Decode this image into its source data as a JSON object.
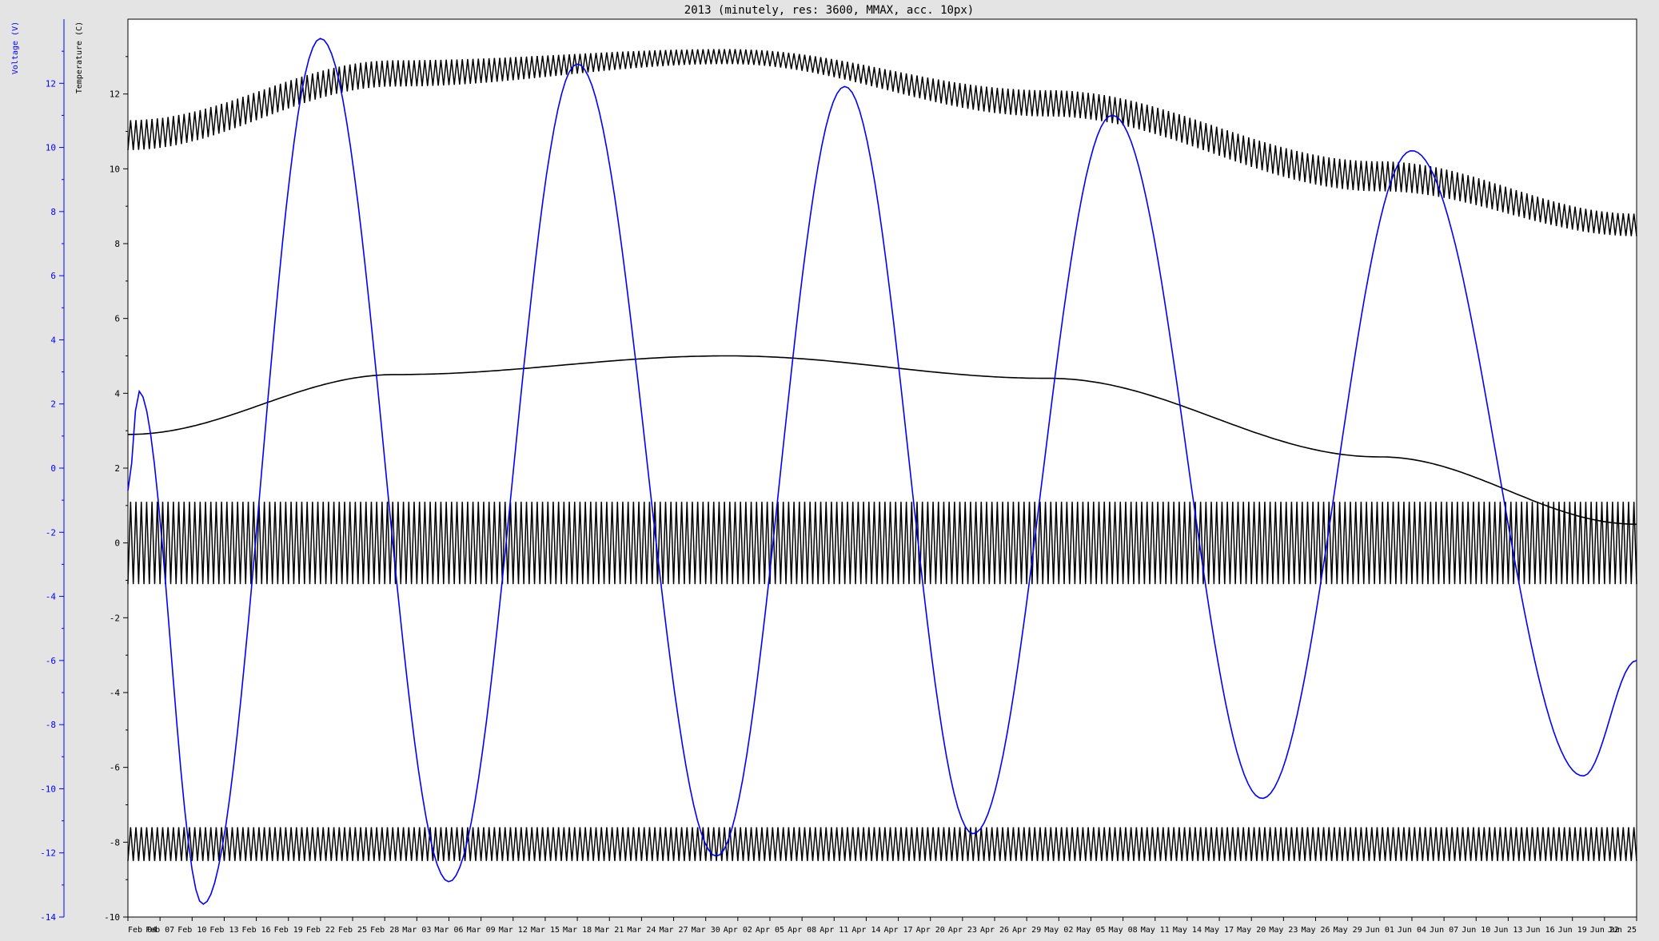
{
  "chart_data": {
    "type": "line",
    "title": "2013 (minutely, res: 3600, MMAX, acc. 10px)",
    "x_axis": {
      "range": [
        "2013-02-04",
        "2013-06-25"
      ],
      "tick_labels": [
        "Feb 04",
        "Feb 07",
        "Feb 10",
        "Feb 13",
        "Feb 16",
        "Feb 19",
        "Feb 22",
        "Feb 25",
        "Feb 28",
        "Mar 03",
        "Mar 06",
        "Mar 09",
        "Mar 12",
        "Mar 15",
        "Mar 18",
        "Mar 21",
        "Mar 24",
        "Mar 27",
        "Mar 30",
        "Apr 02",
        "Apr 05",
        "Apr 08",
        "Apr 11",
        "Apr 14",
        "Apr 17",
        "Apr 20",
        "Apr 23",
        "Apr 26",
        "Apr 29",
        "May 02",
        "May 05",
        "May 08",
        "May 11",
        "May 14",
        "May 17",
        "May 20",
        "May 23",
        "May 26",
        "May 29",
        "Jun 01",
        "Jun 04",
        "Jun 07",
        "Jun 10",
        "Jun 13",
        "Jun 16",
        "Jun 19",
        "Jun 22",
        "Jun 25"
      ]
    },
    "y_axis_voltage": {
      "label": "Voltage (V)",
      "color": "#0000ff",
      "range": [
        -14,
        14
      ],
      "tick_labels": [
        "-14",
        "-12",
        "-10",
        "-8",
        "-6",
        "-4",
        "-2",
        "0",
        "2",
        "4",
        "6",
        "8",
        "10",
        "12"
      ]
    },
    "y_axis_temperature": {
      "label": "Temperature (C)",
      "color": "#000000",
      "range": [
        -10,
        14
      ],
      "tick_labels": [
        "-10",
        "-8",
        "-6",
        "-4",
        "-2",
        "0",
        "2",
        "4",
        "6",
        "8",
        "10",
        "12"
      ]
    },
    "grid": false,
    "series": [
      {
        "axis": "voltage",
        "color": "#0000ff",
        "shape": "oscillating sine with decaying amplitude",
        "x": [
          "2013-02-04",
          "2013-02-05",
          "2013-02-11",
          "2013-02-22",
          "2013-03-06",
          "2013-03-18",
          "2013-03-31",
          "2013-04-12",
          "2013-04-24",
          "2013-05-07",
          "2013-05-21",
          "2013-06-04",
          "2013-06-20",
          "2013-06-25"
        ],
        "y": [
          -0.7,
          2.4,
          -13.6,
          13.4,
          -12.9,
          12.6,
          -12.1,
          11.9,
          -11.4,
          11.0,
          -10.3,
          9.9,
          -9.6,
          -6.0
        ]
      },
      {
        "axis": "temperature",
        "color": "#000000",
        "shape": "smooth arch",
        "x": [
          "2013-02-04",
          "2013-03-01",
          "2013-04-01",
          "2013-05-01",
          "2013-06-01",
          "2013-06-25"
        ],
        "y": [
          2.9,
          4.5,
          5.0,
          4.4,
          2.3,
          0.5
        ]
      },
      {
        "axis": "temperature",
        "color": "#000000",
        "shape": "rapid zigzag band around a slow arch",
        "x": [
          "2013-02-04",
          "2013-03-01",
          "2013-04-01",
          "2013-05-01",
          "2013-06-01",
          "2013-06-25"
        ],
        "y_min": [
          10.5,
          12.2,
          12.8,
          11.4,
          9.4,
          8.2
        ],
        "y_max": [
          11.3,
          12.9,
          13.2,
          12.1,
          10.2,
          8.8
        ]
      },
      {
        "axis": "temperature",
        "color": "#000000",
        "shape": "rapid zigzag band",
        "y_min": -1.1,
        "y_max": 1.1
      },
      {
        "axis": "temperature",
        "color": "#000000",
        "shape": "rapid zigzag band",
        "y_min": -8.5,
        "y_max": -7.6
      }
    ]
  }
}
